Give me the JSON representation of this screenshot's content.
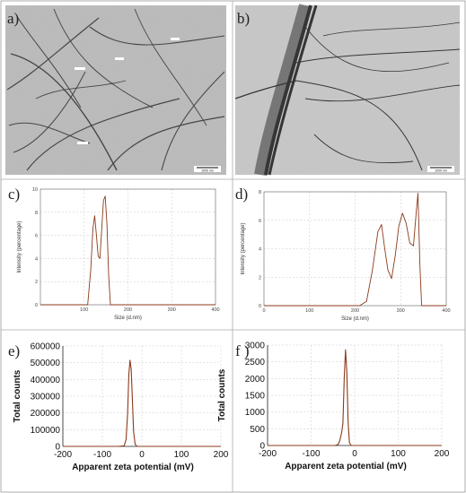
{
  "panels": {
    "a": {
      "letter": "a)",
      "scale_bar": "1000 nm"
    },
    "b": {
      "letter": "b)",
      "scale_bar": "1000 nm"
    }
  },
  "chart_data": [
    {
      "panel": "c)",
      "type": "line",
      "xlabel": "Size (d.nm)",
      "ylabel": "Intensity (percentage)",
      "xlim": [
        0,
        400
      ],
      "ylim": [
        0,
        10
      ],
      "xticks": [
        100,
        200,
        300,
        400
      ],
      "yticks": [
        0,
        2,
        4,
        6,
        8,
        10
      ],
      "grid": true,
      "color": "#8B3A1A",
      "series": [
        {
          "x": [
            0,
            85,
            108,
            115,
            120,
            124,
            128,
            132,
            136,
            140,
            144,
            148,
            152,
            156,
            160,
            165,
            400
          ],
          "values": [
            0,
            0,
            0,
            3.0,
            6.6,
            7.7,
            6.0,
            4.2,
            4.0,
            6.5,
            9.0,
            9.4,
            7.0,
            2.5,
            0,
            0,
            0
          ]
        }
      ]
    },
    {
      "panel": "d)",
      "type": "line",
      "xlabel": "Size (d.nm)",
      "ylabel": "Intensity (percentage)",
      "xlim": [
        0,
        400
      ],
      "ylim": [
        0,
        8
      ],
      "xticks": [
        0,
        100,
        200,
        300,
        400
      ],
      "yticks": [
        0,
        2,
        4,
        6,
        8
      ],
      "grid": true,
      "color": "#8B3A1A",
      "series": [
        {
          "x": [
            0,
            210,
            225,
            238,
            250,
            258,
            265,
            272,
            280,
            288,
            296,
            304,
            312,
            320,
            328,
            334,
            338,
            342,
            346,
            400
          ],
          "values": [
            0,
            0,
            0.3,
            2.5,
            5.2,
            5.7,
            4.0,
            2.5,
            1.9,
            3.5,
            5.6,
            6.5,
            5.8,
            4.4,
            4.2,
            6.5,
            7.9,
            3.0,
            0,
            0
          ]
        }
      ]
    },
    {
      "panel": "e)",
      "type": "line",
      "xlabel": "Apparent zeta potential (mV)",
      "ylabel": "Total counts",
      "xlim": [
        -200,
        200
      ],
      "ylim": [
        0,
        600000
      ],
      "xticks": [
        -200,
        -100,
        0,
        100,
        200
      ],
      "yticks": [
        0,
        100000,
        200000,
        300000,
        400000,
        500000,
        600000
      ],
      "grid": true,
      "color": "#8B3A1A",
      "series": [
        {
          "x": [
            -200,
            -60,
            -45,
            -40,
            -36,
            -33,
            -30,
            -27,
            -24,
            -21,
            -17,
            -12,
            200
          ],
          "values": [
            0,
            0,
            3000,
            40000,
            200000,
            430000,
            515000,
            460000,
            280000,
            90000,
            12000,
            0,
            0
          ]
        }
      ]
    },
    {
      "panel": "f )",
      "type": "line",
      "xlabel": "Apparent zeta potential (mV)",
      "ylabel": "Total counts",
      "xlim": [
        -200,
        200
      ],
      "ylim": [
        0,
        3000
      ],
      "xticks": [
        -200,
        -100,
        0,
        100,
        200
      ],
      "yticks": [
        0,
        500,
        1000,
        1500,
        2000,
        2500,
        3000
      ],
      "grid": true,
      "color": "#8B3A1A",
      "series": [
        {
          "x": [
            -200,
            -45,
            -38,
            -34,
            -30,
            -27,
            -24,
            -21,
            -18,
            -15,
            -12,
            -8,
            200
          ],
          "values": [
            0,
            0,
            30,
            150,
            380,
            650,
            2000,
            2860,
            2200,
            700,
            80,
            0,
            0
          ]
        }
      ]
    }
  ]
}
